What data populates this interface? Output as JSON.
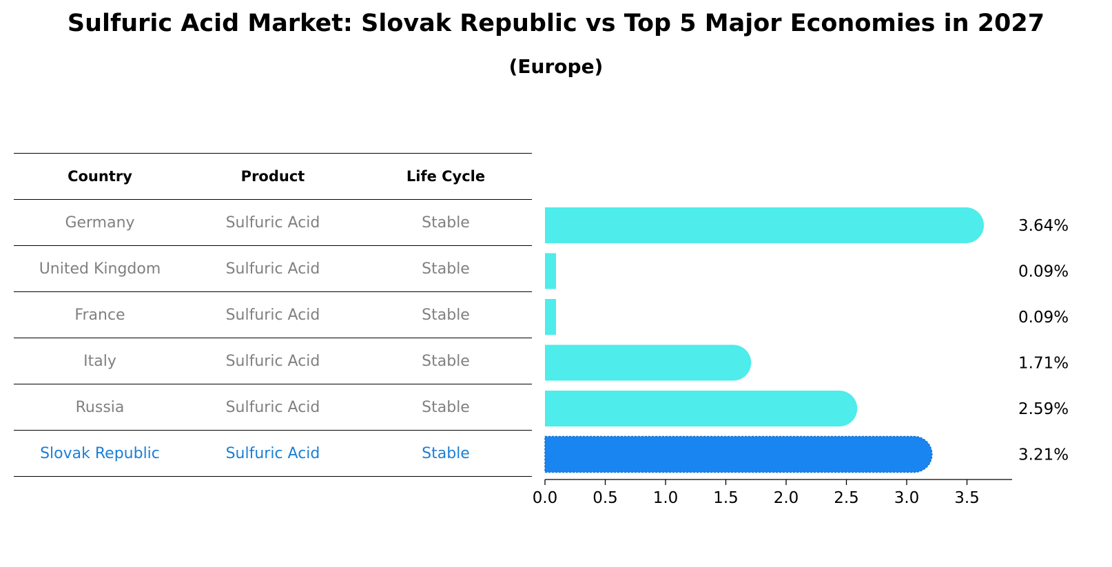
{
  "chart_data": {
    "type": "bar",
    "orientation": "horizontal",
    "title": "Sulfuric Acid Market: Slovak Republic vs Top 5 Major Economies in 2027",
    "subtitle": "(Europe)",
    "table": {
      "headers": [
        "Country",
        "Product",
        "Life Cycle"
      ],
      "rows": [
        {
          "country": "Germany",
          "product": "Sulfuric Acid",
          "life_cycle": "Stable"
        },
        {
          "country": "United Kingdom",
          "product": "Sulfuric Acid",
          "life_cycle": "Stable"
        },
        {
          "country": "France",
          "product": "Sulfuric Acid",
          "life_cycle": "Stable"
        },
        {
          "country": "Italy",
          "product": "Sulfuric Acid",
          "life_cycle": "Stable"
        },
        {
          "country": "Russia",
          "product": "Sulfuric Acid",
          "life_cycle": "Stable"
        },
        {
          "country": "Slovak Republic",
          "product": "Sulfuric Acid",
          "life_cycle": "Stable"
        }
      ]
    },
    "categories": [
      "Germany",
      "United Kingdom",
      "France",
      "Italy",
      "Russia",
      "Slovak Republic"
    ],
    "values": [
      3.64,
      0.09,
      0.09,
      1.71,
      2.59,
      3.21
    ],
    "value_labels": [
      "3.64%",
      "0.09%",
      "0.09%",
      "1.71%",
      "2.59%",
      "3.21%"
    ],
    "highlight": "Slovak Republic",
    "xlim": [
      0,
      3.85
    ],
    "xticks": [
      0.0,
      0.5,
      1.0,
      1.5,
      2.0,
      2.5,
      3.0,
      3.5
    ],
    "xtick_labels": [
      "0.0",
      "0.5",
      "1.0",
      "1.5",
      "2.0",
      "2.5",
      "3.0",
      "3.5"
    ],
    "colors": {
      "bar": "#4eecea",
      "highlight_bar": "#1985f0",
      "highlight_text": "#1a7fd8",
      "table_text": "#808080"
    }
  }
}
